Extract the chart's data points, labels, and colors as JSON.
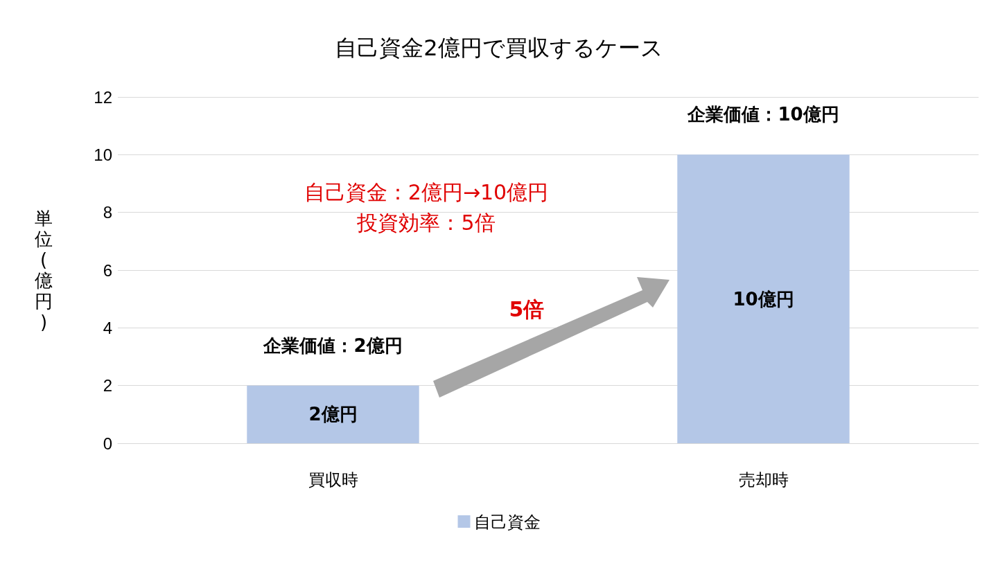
{
  "chart_data": {
    "type": "bar",
    "title": "自己資金2億円で買収するケース",
    "ylabel": "単位(億円)",
    "categories": [
      "買収時",
      "売却時"
    ],
    "series": [
      {
        "name": "自己資金",
        "color": "#b4c7e7",
        "values": [
          2,
          10
        ],
        "value_labels": [
          "2億円",
          "10億円"
        ]
      }
    ],
    "ylim": [
      0,
      12
    ],
    "yticks": [
      0,
      2,
      4,
      6,
      8,
      10,
      12
    ],
    "grid": "y",
    "legend": "bottom",
    "annotations": [
      {
        "text": "企業価値：2億円",
        "x": "買収時",
        "y": 2
      },
      {
        "text": "企業価値：10億円",
        "x": "売却時",
        "y": 10
      },
      "自己資金：2億円→10億円",
      "投資効率：5倍",
      "5倍"
    ]
  }
}
